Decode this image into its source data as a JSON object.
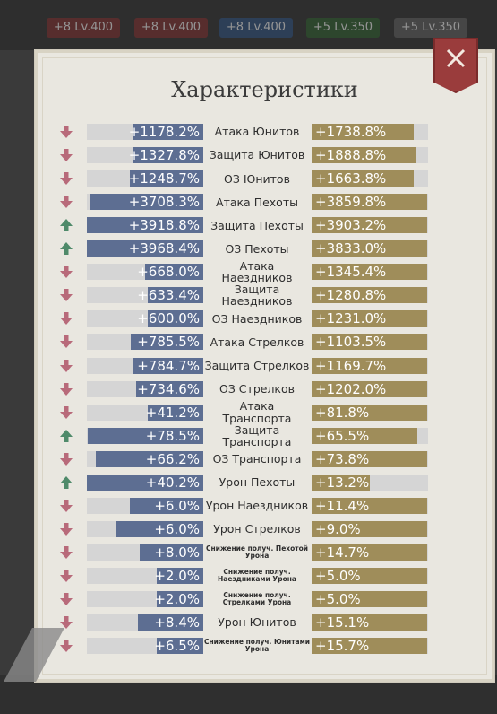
{
  "background": {
    "badges": [
      {
        "text": "+8 Lv.400",
        "color": "#7a2d2d"
      },
      {
        "text": "+8 Lv.400",
        "color": "#7a2d2d"
      },
      {
        "text": "+8 Lv.400",
        "color": "#2d4d7a"
      },
      {
        "text": "+5 Lv.350",
        "color": "#2d5a2d"
      },
      {
        "text": "+5 Lv.350",
        "color": "#5a5a5a"
      }
    ]
  },
  "dialog": {
    "title": "Характеристики",
    "close_icon": "close-icon"
  },
  "colors": {
    "left_fill": "#5d6e92",
    "right_fill": "#9f8d5a",
    "arrow_down": "#b86a7a",
    "arrow_up": "#4f8a6a"
  },
  "stats": [
    {
      "dir": "down",
      "left": "+1178.2%",
      "label": "Атака Юнитов",
      "right": "+1738.8%",
      "lf": 0.6,
      "rf": 0.88,
      "small": false
    },
    {
      "dir": "down",
      "left": "+1327.8%",
      "label": "Защита Юнитов",
      "right": "+1888.8%",
      "lf": 0.6,
      "rf": 0.9,
      "small": false
    },
    {
      "dir": "down",
      "left": "+1248.7%",
      "label": "ОЗ Юнитов",
      "right": "+1663.8%",
      "lf": 0.63,
      "rf": 0.88,
      "small": false
    },
    {
      "dir": "down",
      "left": "+3708.3%",
      "label": "Атака Пехоты",
      "right": "+3859.8%",
      "lf": 0.97,
      "rf": 0.99,
      "small": false
    },
    {
      "dir": "up",
      "left": "+3918.8%",
      "label": "Защита Пехоты",
      "right": "+3903.2%",
      "lf": 1.0,
      "rf": 0.99,
      "small": false
    },
    {
      "dir": "up",
      "left": "+3968.4%",
      "label": "ОЗ Пехоты",
      "right": "+3833.0%",
      "lf": 1.0,
      "rf": 0.99,
      "small": false
    },
    {
      "dir": "down",
      "left": "+668.0%",
      "label": "Атака Наездников",
      "right": "+1345.4%",
      "lf": 0.5,
      "rf": 0.99,
      "small": false
    },
    {
      "dir": "down",
      "left": "+633.4%",
      "label": "Защита Наездников",
      "right": "+1280.8%",
      "lf": 0.48,
      "rf": 0.99,
      "small": false
    },
    {
      "dir": "down",
      "left": "+600.0%",
      "label": "ОЗ Наездников",
      "right": "+1231.0%",
      "lf": 0.48,
      "rf": 0.99,
      "small": false
    },
    {
      "dir": "down",
      "left": "+785.5%",
      "label": "Атака Стрелков",
      "right": "+1103.5%",
      "lf": 0.62,
      "rf": 0.99,
      "small": false
    },
    {
      "dir": "down",
      "left": "+784.7%",
      "label": "Защита Стрелков",
      "right": "+1169.7%",
      "lf": 0.6,
      "rf": 0.99,
      "small": false
    },
    {
      "dir": "down",
      "left": "+734.6%",
      "label": "ОЗ Стрелков",
      "right": "+1202.0%",
      "lf": 0.58,
      "rf": 0.99,
      "small": false
    },
    {
      "dir": "down",
      "left": "+41.2%",
      "label": "Атака Транспорта",
      "right": "+81.8%",
      "lf": 0.48,
      "rf": 0.99,
      "small": false
    },
    {
      "dir": "up",
      "left": "+78.5%",
      "label": "Защита Транспорта",
      "right": "+65.5%",
      "lf": 0.99,
      "rf": 0.91,
      "small": false
    },
    {
      "dir": "down",
      "left": "+66.2%",
      "label": "ОЗ Транспорта",
      "right": "+73.8%",
      "lf": 0.92,
      "rf": 0.99,
      "small": false
    },
    {
      "dir": "up",
      "left": "+40.2%",
      "label": "Урон Пехоты",
      "right": "+13.2%",
      "lf": 1.0,
      "rf": 0.5,
      "small": false
    },
    {
      "dir": "down",
      "left": "+6.0%",
      "label": "Урон Наездников",
      "right": "+11.4%",
      "lf": 0.63,
      "rf": 0.99,
      "small": false
    },
    {
      "dir": "down",
      "left": "+6.0%",
      "label": "Урон Стрелков",
      "right": "+9.0%",
      "lf": 0.75,
      "rf": 0.99,
      "small": false
    },
    {
      "dir": "down",
      "left": "+8.0%",
      "label": "Снижение получ. Пехотой Урона",
      "right": "+14.7%",
      "lf": 0.55,
      "rf": 0.99,
      "small": true
    },
    {
      "dir": "down",
      "left": "+2.0%",
      "label": "Снижение получ. Наездниками Урона",
      "right": "+5.0%",
      "lf": 0.4,
      "rf": 0.99,
      "small": true
    },
    {
      "dir": "down",
      "left": "+2.0%",
      "label": "Снижение получ. Стрелками Урона",
      "right": "+5.0%",
      "lf": 0.4,
      "rf": 0.99,
      "small": true
    },
    {
      "dir": "down",
      "left": "+8.4%",
      "label": "Урон Юнитов",
      "right": "+15.1%",
      "lf": 0.56,
      "rf": 0.99,
      "small": false
    },
    {
      "dir": "down",
      "left": "+6.5%",
      "label": "Снижение получ. Юнитами Урона",
      "right": "+15.7%",
      "lf": 0.4,
      "rf": 0.99,
      "small": true
    }
  ]
}
